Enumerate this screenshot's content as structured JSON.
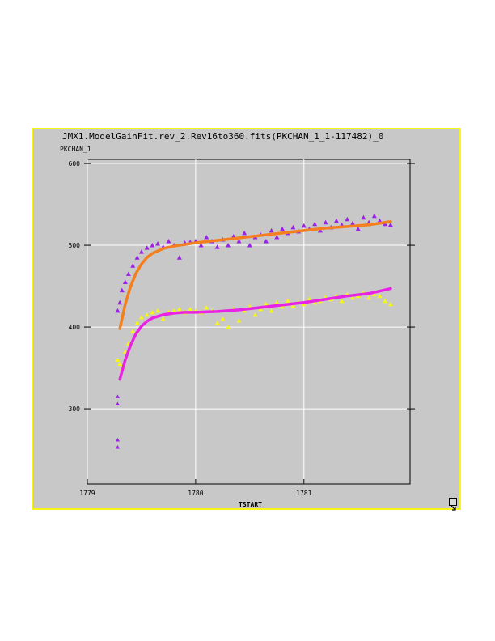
{
  "window": {
    "title": "JMX1.ModelGainFit.rev_2.Rev16to360.fits(PKCHAN_1_1-117482)_0",
    "resize_icon": "resize-arrow-icon"
  },
  "chart_data": {
    "type": "scatter",
    "title": "JMX1.ModelGainFit.rev_2.Rev16to360.fits(PKCHAN_1_1-117482)_0",
    "xlabel": "TSTART",
    "ylabel": "PKCHAN_1",
    "xlim": [
      1779.0,
      1781.98
    ],
    "ylim": [
      208,
      605
    ],
    "xticks": [
      1779,
      1780,
      1781
    ],
    "xtick_labels": [
      "1779",
      "1780",
      "1781"
    ],
    "yticks": [
      300,
      400,
      500,
      600
    ],
    "ytick_labels": [
      "300",
      "400",
      "500",
      "600"
    ],
    "grid": true,
    "colors": {
      "background": "#c8c8c8",
      "border": "#f5f516",
      "grid": "#ffffff",
      "series_purple": "#9a22e6",
      "series_yellow": "#f5f516",
      "fit_orange": "#f47f1e",
      "fit_magenta": "#ea22e6"
    },
    "series": [
      {
        "name": "",
        "kind": "scatter",
        "marker": "triangle",
        "color": "#9a22e6",
        "x": [
          1779.28,
          1779.3,
          1779.32,
          1779.35,
          1779.38,
          1779.42,
          1779.46,
          1779.5,
          1779.55,
          1779.6,
          1779.65,
          1779.7,
          1779.75,
          1779.8,
          1779.85,
          1779.9,
          1779.95,
          1780.0,
          1780.05,
          1780.1,
          1780.15,
          1780.2,
          1780.25,
          1780.3,
          1780.35,
          1780.4,
          1780.45,
          1780.5,
          1780.55,
          1780.6,
          1780.65,
          1780.7,
          1780.75,
          1780.8,
          1780.85,
          1780.9,
          1780.95,
          1781.0,
          1781.05,
          1781.1,
          1781.15,
          1781.2,
          1781.25,
          1781.3,
          1781.35,
          1781.4,
          1781.45,
          1781.5,
          1781.55,
          1781.6,
          1781.65,
          1781.7,
          1781.75,
          1781.8
        ],
        "y": [
          420,
          430,
          445,
          455,
          465,
          475,
          485,
          492,
          497,
          500,
          502,
          498,
          505,
          500,
          485,
          503,
          504,
          505,
          500,
          510,
          505,
          498,
          507,
          500,
          511,
          505,
          515,
          500,
          510,
          513,
          505,
          518,
          510,
          520,
          515,
          522,
          517,
          524,
          520,
          526,
          518,
          528,
          522,
          530,
          525,
          532,
          527,
          520,
          534,
          528,
          536,
          530,
          526,
          525
        ]
      },
      {
        "name": "",
        "kind": "scatter",
        "marker": "triangle",
        "color": "#f5f516",
        "x": [
          1779.28,
          1779.3,
          1779.32,
          1779.35,
          1779.38,
          1779.42,
          1779.46,
          1779.5,
          1779.55,
          1779.6,
          1779.65,
          1779.7,
          1779.75,
          1779.8,
          1779.85,
          1779.9,
          1779.95,
          1780.0,
          1780.05,
          1780.1,
          1780.15,
          1780.2,
          1780.25,
          1780.3,
          1780.35,
          1780.4,
          1780.45,
          1780.5,
          1780.55,
          1780.6,
          1780.65,
          1780.7,
          1780.75,
          1780.8,
          1780.85,
          1780.9,
          1780.95,
          1781.0,
          1781.05,
          1781.1,
          1781.15,
          1781.2,
          1781.25,
          1781.3,
          1781.35,
          1781.4,
          1781.45,
          1781.5,
          1781.55,
          1781.6,
          1781.65,
          1781.7,
          1781.75,
          1781.8
        ],
        "y": [
          360,
          355,
          350,
          370,
          380,
          395,
          405,
          412,
          415,
          418,
          420,
          410,
          418,
          420,
          422,
          418,
          422,
          420,
          418,
          424,
          420,
          405,
          410,
          400,
          422,
          408,
          420,
          425,
          415,
          422,
          428,
          420,
          430,
          425,
          432,
          426,
          430,
          428,
          434,
          430,
          432,
          436,
          434,
          438,
          432,
          440,
          436,
          438,
          442,
          436,
          440,
          438,
          432,
          428
        ]
      },
      {
        "name": "",
        "kind": "line",
        "color": "#f47f1e",
        "x": [
          1779.3,
          1779.35,
          1779.4,
          1779.45,
          1779.5,
          1779.55,
          1779.6,
          1779.7,
          1779.8,
          1779.9,
          1780.0,
          1780.2,
          1780.4,
          1780.6,
          1780.8,
          1781.0,
          1781.2,
          1781.4,
          1781.6,
          1781.8
        ],
        "y": [
          398,
          428,
          450,
          466,
          477,
          485,
          490,
          496,
          499,
          501,
          503,
          506,
          509,
          512,
          515,
          518,
          521,
          523,
          525,
          529
        ]
      },
      {
        "name": "",
        "kind": "line",
        "color": "#ea22e6",
        "x": [
          1779.3,
          1779.35,
          1779.4,
          1779.45,
          1779.5,
          1779.55,
          1779.6,
          1779.7,
          1779.8,
          1779.9,
          1780.0,
          1780.2,
          1780.4,
          1780.6,
          1780.8,
          1781.0,
          1781.2,
          1781.4,
          1781.6,
          1781.8
        ],
        "y": [
          336,
          360,
          378,
          392,
          401,
          407,
          411,
          415,
          417,
          418,
          418,
          419,
          421,
          424,
          427,
          430,
          434,
          438,
          441,
          447
        ]
      }
    ],
    "outliers": {
      "color": "#9a22e6",
      "x": [
        1779.28,
        1779.28,
        1779.28,
        1779.28
      ],
      "y": [
        315,
        306,
        262,
        253
      ]
    }
  }
}
